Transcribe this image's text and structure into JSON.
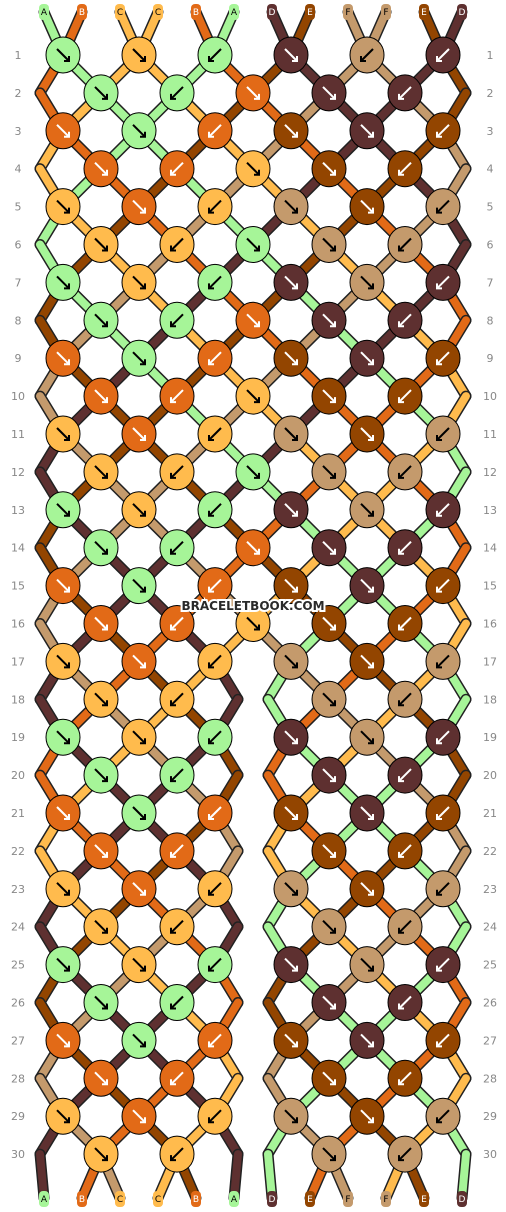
{
  "watermark": "BRACELETBOOK.COM",
  "colors": {
    "A": "#A6F598",
    "B": "#E26A17",
    "C": "#FFBB4D",
    "D": "#5E3030",
    "E": "#934500",
    "F": "#C49A6C"
  },
  "strands_top": [
    "A",
    "B",
    "C",
    "C",
    "B",
    "A",
    "D",
    "E",
    "F",
    "F",
    "E",
    "D"
  ],
  "strands_bottom": [
    "A",
    "B",
    "C",
    "C",
    "B",
    "A",
    "D",
    "E",
    "F",
    "F",
    "E",
    "D"
  ],
  "rows": [
    "1",
    "2",
    "3",
    "4",
    "5",
    "6",
    "7",
    "8",
    "9",
    "10",
    "11",
    "12",
    "13",
    "14",
    "15",
    "16",
    "17",
    "18",
    "19",
    "20",
    "21",
    "22",
    "23",
    "24",
    "25",
    "26",
    "27",
    "28",
    "29",
    "30"
  ],
  "knots": [
    [
      "A↘",
      "C↘",
      "A↙",
      "D↘",
      "F↙",
      "D↙"
    ],
    [
      "A↘",
      "A↙",
      "B↘",
      "D↘",
      "D↙"
    ],
    [
      "B↘",
      "A↘",
      "B↙",
      "E↘",
      "D↘",
      "E↙"
    ],
    [
      "B↘",
      "B↙",
      "C↘",
      "E↘",
      "E↙"
    ],
    [
      "C↘",
      "B↘",
      "C↙",
      "F↘",
      "E↘",
      "F↙"
    ],
    [
      "C↘",
      "C↙",
      "A↘",
      "F↘",
      "F↙"
    ],
    [
      "A↘",
      "C↘",
      "A↙",
      "D↘",
      "F↘",
      "D↙"
    ],
    [
      "A↘",
      "A↙",
      "B↘",
      "D↘",
      "D↙"
    ],
    [
      "B↘",
      "A↘",
      "B↙",
      "E↘",
      "D↘",
      "E↙"
    ],
    [
      "B↘",
      "B↙",
      "C↘",
      "E↘",
      "E↙"
    ],
    [
      "C↘",
      "B↘",
      "C↙",
      "F↘",
      "E↘",
      "F↙"
    ],
    [
      "C↘",
      "C↙",
      "A↘",
      "F↘",
      "F↙"
    ],
    [
      "A↘",
      "C↘",
      "A↙",
      "D↘",
      "F↘",
      "D↙"
    ],
    [
      "A↘",
      "A↙",
      "B↘",
      "D↘",
      "D↙"
    ],
    [
      "B↘",
      "A↘",
      "B↙",
      "E↘",
      "D↘",
      "E↙"
    ],
    [
      "B↘",
      "B↙",
      "C↘",
      "E↘",
      "E↙"
    ],
    [
      "C↘",
      "B↘",
      "C↙",
      "F↘",
      "E↘",
      "F↙"
    ],
    [
      "C↘",
      "C↙",
      "",
      "F↘",
      "F↙"
    ],
    [
      "A↘",
      "C↘",
      "A↙",
      "D↘",
      "F↘",
      "D↙"
    ],
    [
      "A↘",
      "A↙",
      "",
      "D↘",
      "D↙"
    ],
    [
      "B↘",
      "A↘",
      "B↙",
      "E↘",
      "D↘",
      "E↙"
    ],
    [
      "B↘",
      "B↙",
      "",
      "E↘",
      "E↙"
    ],
    [
      "C↘",
      "B↘",
      "C↙",
      "F↘",
      "E↘",
      "F↙"
    ],
    [
      "C↘",
      "C↙",
      "",
      "F↘",
      "F↙"
    ],
    [
      "A↘",
      "C↘",
      "A↙",
      "D↘",
      "F↘",
      "D↙"
    ],
    [
      "A↘",
      "A↙",
      "",
      "D↘",
      "D↙"
    ],
    [
      "B↘",
      "A↘",
      "B↙",
      "E↘",
      "D↘",
      "E↙"
    ],
    [
      "B↘",
      "B↙",
      "",
      "E↘",
      "E↙"
    ],
    [
      "C↘",
      "B↘",
      "C↙",
      "F↘",
      "E↘",
      "F↙"
    ],
    [
      "C↘",
      "C↙",
      "",
      "F↘",
      "F↙"
    ]
  ]
}
